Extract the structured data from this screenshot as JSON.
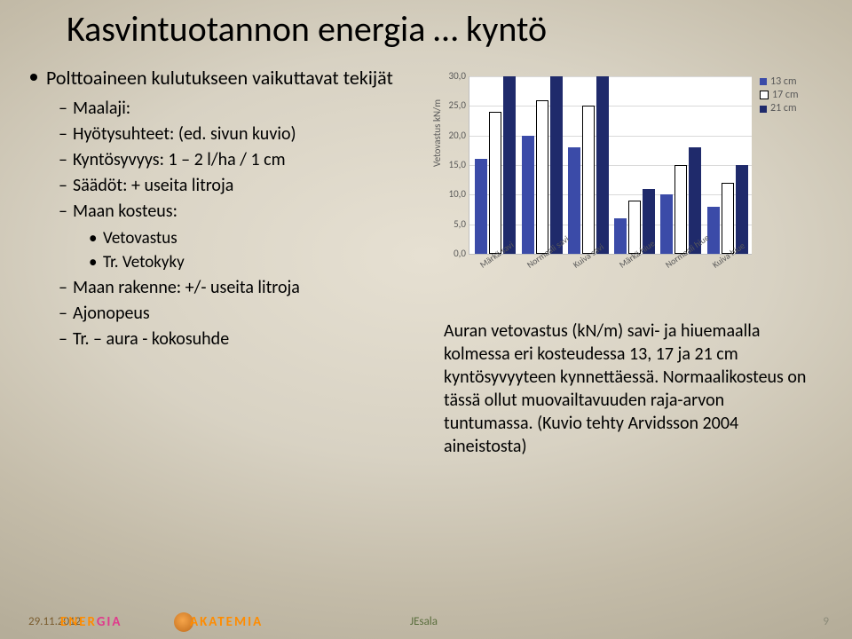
{
  "title": "Kasvintuotannon energia … kyntö",
  "bullets": {
    "top": "Polttoaineen kulutukseen vaikuttavat tekijät",
    "sub": [
      "Maalaji:",
      "Hyötysuhteet: (ed. sivun kuvio)",
      "Kyntösyvyys: 1 – 2 l/ha / 1 cm",
      "Säädöt: + useita litroja",
      "Maan kosteus:",
      "Maan rakenne: +/- useita litroja",
      "Ajonopeus",
      "Tr. – aura - kokosuhde"
    ],
    "sub2": [
      "Vetovastus",
      "Tr. Vetokyky"
    ]
  },
  "chart": {
    "yaxis_label": "Vetovastus kN/m",
    "ymax": 30,
    "yticks": [
      "0,0",
      "5,0",
      "10,0",
      "15,0",
      "20,0",
      "25,0",
      "30,0"
    ],
    "categories": [
      "Märkä savi",
      "Normaali savi",
      "Kuiva savi",
      "Märkä hiue",
      "Normaali hiue",
      "Kuiva hiue"
    ],
    "series": [
      {
        "label": "13 cm",
        "color": "#3b4ba8",
        "values": [
          16,
          20,
          18,
          6,
          10,
          8
        ]
      },
      {
        "label": "17 cm",
        "color": "#ffffff",
        "stroke": "#000000",
        "values": [
          24,
          26,
          25,
          9,
          15,
          12
        ]
      },
      {
        "label": "21 cm",
        "color": "#1f2a6b",
        "values": [
          30,
          30,
          30,
          11,
          18,
          15
        ]
      }
    ],
    "plot_bg": "#ffffff",
    "grid_color": "#d9d9d9"
  },
  "caption": "Auran vetovastus (kN/m) savi- ja hiuemaalla kolmessa eri kosteudessa 13, 17 ja 21 cm kyntösyvyyteen kynnettäessä. Normaalikosteus on tässä ollut muovailtavuuden raja-arvon tuntumassa. (Kuvio tehty Arvidsson 2004 aineistosta)",
  "footer": {
    "date": "29.11.2012",
    "author": "JEsala",
    "page": "9",
    "logo1a": "ENER",
    "logo1b": "GIA",
    "logo2": "AKATEMIA"
  }
}
